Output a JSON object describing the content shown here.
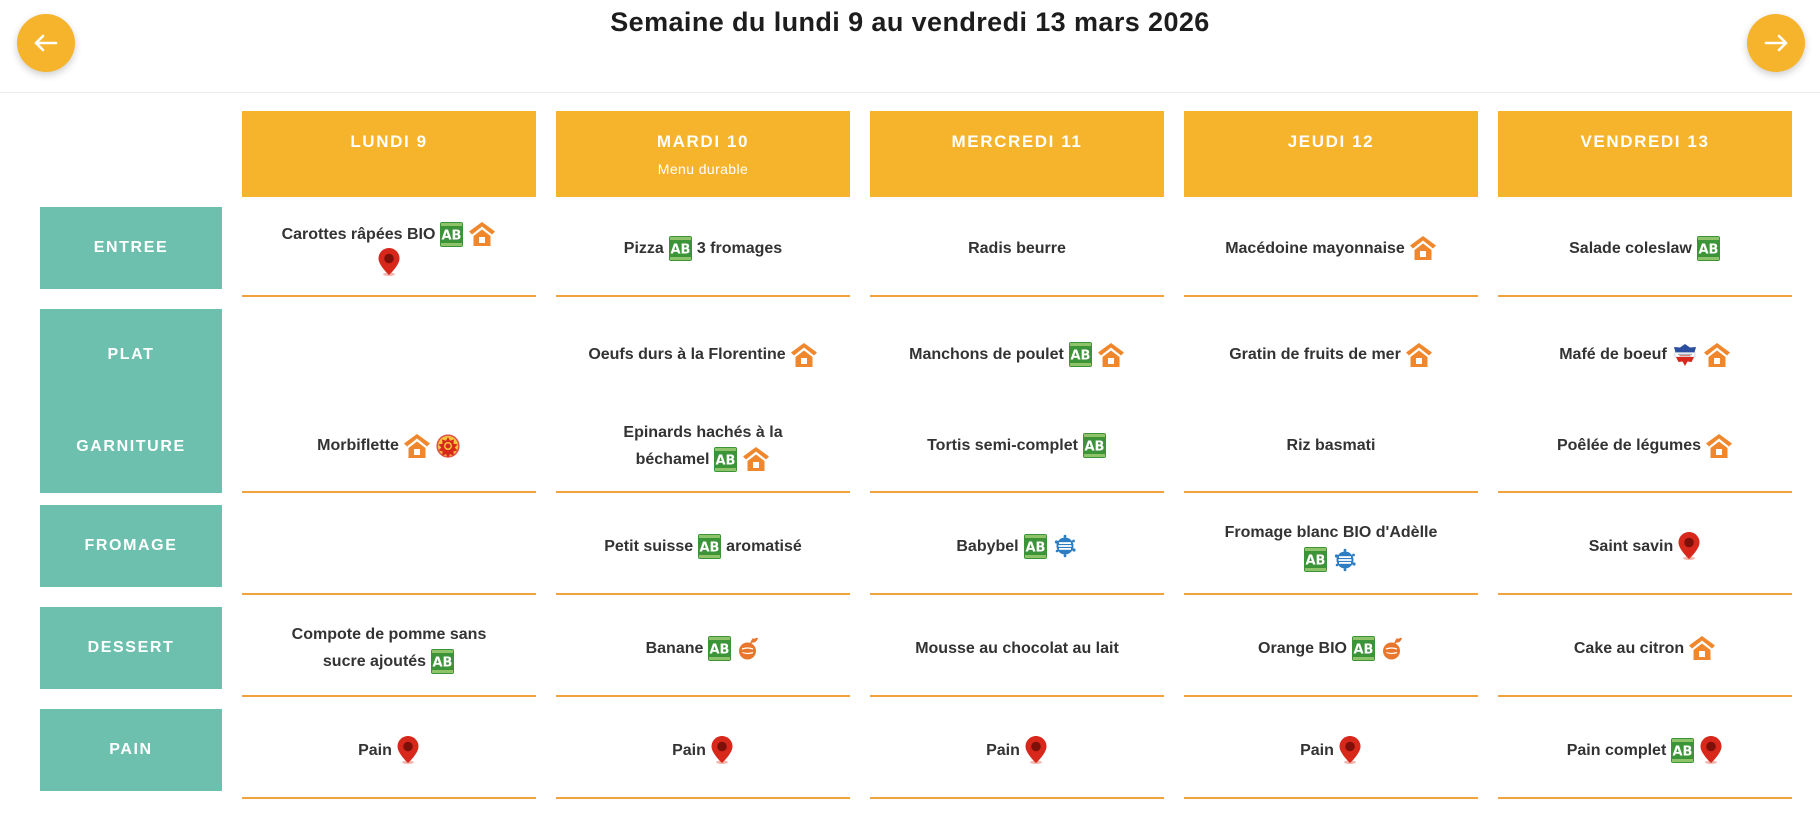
{
  "header": {
    "title": "Semaine du lundi 9 au vendredi 13 mars 2026"
  },
  "colors": {
    "accent_yellow": "#f6b42c",
    "teal": "#6dc0ad",
    "underline_orange": "#f2a23b",
    "text_dark": "#333333",
    "house_orange": "#f0872c",
    "pin_red": "#d8281c",
    "bio_green": "#3c9438",
    "dairy_blue": "#2d7dc2",
    "fruit_orange": "#e8762c"
  },
  "days": [
    {
      "label": "LUNDI 9",
      "subtitle": ""
    },
    {
      "label": "MARDI 10",
      "subtitle": "Menu durable"
    },
    {
      "label": "MERCREDI 11",
      "subtitle": ""
    },
    {
      "label": "JEUDI 12",
      "subtitle": ""
    },
    {
      "label": "VENDREDI 13",
      "subtitle": ""
    }
  ],
  "icons": {
    "ab": {
      "name": "ab-bio-icon",
      "text": "AB"
    },
    "house": {
      "name": "home-made-house-icon"
    },
    "pin": {
      "name": "local-product-pin-icon"
    },
    "aop": {
      "name": "aop-badge-icon"
    },
    "lait": {
      "name": "milk-splash-icon"
    },
    "fruit": {
      "name": "fruit-de-france-icon"
    },
    "viande": {
      "name": "viande-de-france-icon"
    },
    "arrow_left": {
      "name": "arrow-left-icon"
    },
    "arrow_right": {
      "name": "arrow-right-icon"
    }
  },
  "menu": {
    "sections": [
      {
        "type": "single",
        "label": "ENTREE",
        "cells": [
          [
            {
              "t": "Carottes râpées BIO"
            },
            {
              "i": "ab"
            },
            {
              "i": "house"
            },
            {
              "br": true
            },
            {
              "i": "pin"
            }
          ],
          [
            {
              "t": "Pizza"
            },
            {
              "i": "ab"
            },
            {
              "t": "3 fromages"
            }
          ],
          [
            {
              "t": "Radis beurre"
            }
          ],
          [
            {
              "t": "Macédoine mayonnaise"
            },
            {
              "i": "house"
            }
          ],
          [
            {
              "t": "Salade coleslaw"
            },
            {
              "i": "ab"
            }
          ]
        ]
      },
      {
        "type": "double",
        "labels": [
          "PLAT",
          "GARNITURE"
        ],
        "cells": [
          {
            "top": [],
            "bottom": [
              {
                "t": "Morbiflette"
              },
              {
                "i": "house"
              },
              {
                "i": "aop"
              }
            ]
          },
          {
            "top": [
              {
                "t": "Oeufs durs à la Florentine"
              },
              {
                "i": "house"
              }
            ],
            "bottom": [
              {
                "t": "Epinards hachés à la"
              },
              {
                "br": true
              },
              {
                "t": "béchamel"
              },
              {
                "i": "ab"
              },
              {
                "i": "house"
              }
            ]
          },
          {
            "top": [
              {
                "t": "Manchons de poulet"
              },
              {
                "i": "ab"
              },
              {
                "i": "house"
              }
            ],
            "bottom": [
              {
                "t": "Tortis semi-complet"
              },
              {
                "i": "ab"
              }
            ]
          },
          {
            "top": [
              {
                "t": "Gratin de fruits de mer"
              },
              {
                "i": "house"
              }
            ],
            "bottom": [
              {
                "t": "Riz basmati"
              }
            ]
          },
          {
            "top": [
              {
                "t": "Mafé de boeuf"
              },
              {
                "i": "viande"
              },
              {
                "i": "house"
              }
            ],
            "bottom": [
              {
                "t": "Poêlée de légumes"
              },
              {
                "i": "house"
              }
            ]
          }
        ]
      },
      {
        "type": "single",
        "label": "FROMAGE",
        "cells": [
          [],
          [
            {
              "t": "Petit suisse"
            },
            {
              "i": "ab"
            },
            {
              "t": "aromatisé"
            }
          ],
          [
            {
              "t": "Babybel"
            },
            {
              "i": "ab"
            },
            {
              "i": "lait"
            }
          ],
          [
            {
              "t": "Fromage blanc BIO d'Adèlle"
            },
            {
              "br": true
            },
            {
              "i": "ab"
            },
            {
              "i": "lait"
            }
          ],
          [
            {
              "t": "Saint savin"
            },
            {
              "i": "pin"
            }
          ]
        ]
      },
      {
        "type": "single",
        "label": "DESSERT",
        "cells": [
          [
            {
              "t": "Compote de pomme sans"
            },
            {
              "br": true
            },
            {
              "t": "sucre ajoutés"
            },
            {
              "i": "ab"
            }
          ],
          [
            {
              "t": "Banane"
            },
            {
              "i": "ab"
            },
            {
              "i": "fruit"
            }
          ],
          [
            {
              "t": "Mousse au chocolat au lait"
            }
          ],
          [
            {
              "t": "Orange BIO"
            },
            {
              "i": "ab"
            },
            {
              "i": "fruit"
            }
          ],
          [
            {
              "t": "Cake au citron"
            },
            {
              "i": "house"
            }
          ]
        ]
      },
      {
        "type": "single",
        "label": "PAIN",
        "cells": [
          [
            {
              "t": "Pain"
            },
            {
              "i": "pin"
            }
          ],
          [
            {
              "t": "Pain"
            },
            {
              "i": "pin"
            }
          ],
          [
            {
              "t": "Pain"
            },
            {
              "i": "pin"
            }
          ],
          [
            {
              "t": "Pain"
            },
            {
              "i": "pin"
            }
          ],
          [
            {
              "t": "Pain complet"
            },
            {
              "i": "ab"
            },
            {
              "i": "pin"
            }
          ]
        ]
      }
    ]
  }
}
